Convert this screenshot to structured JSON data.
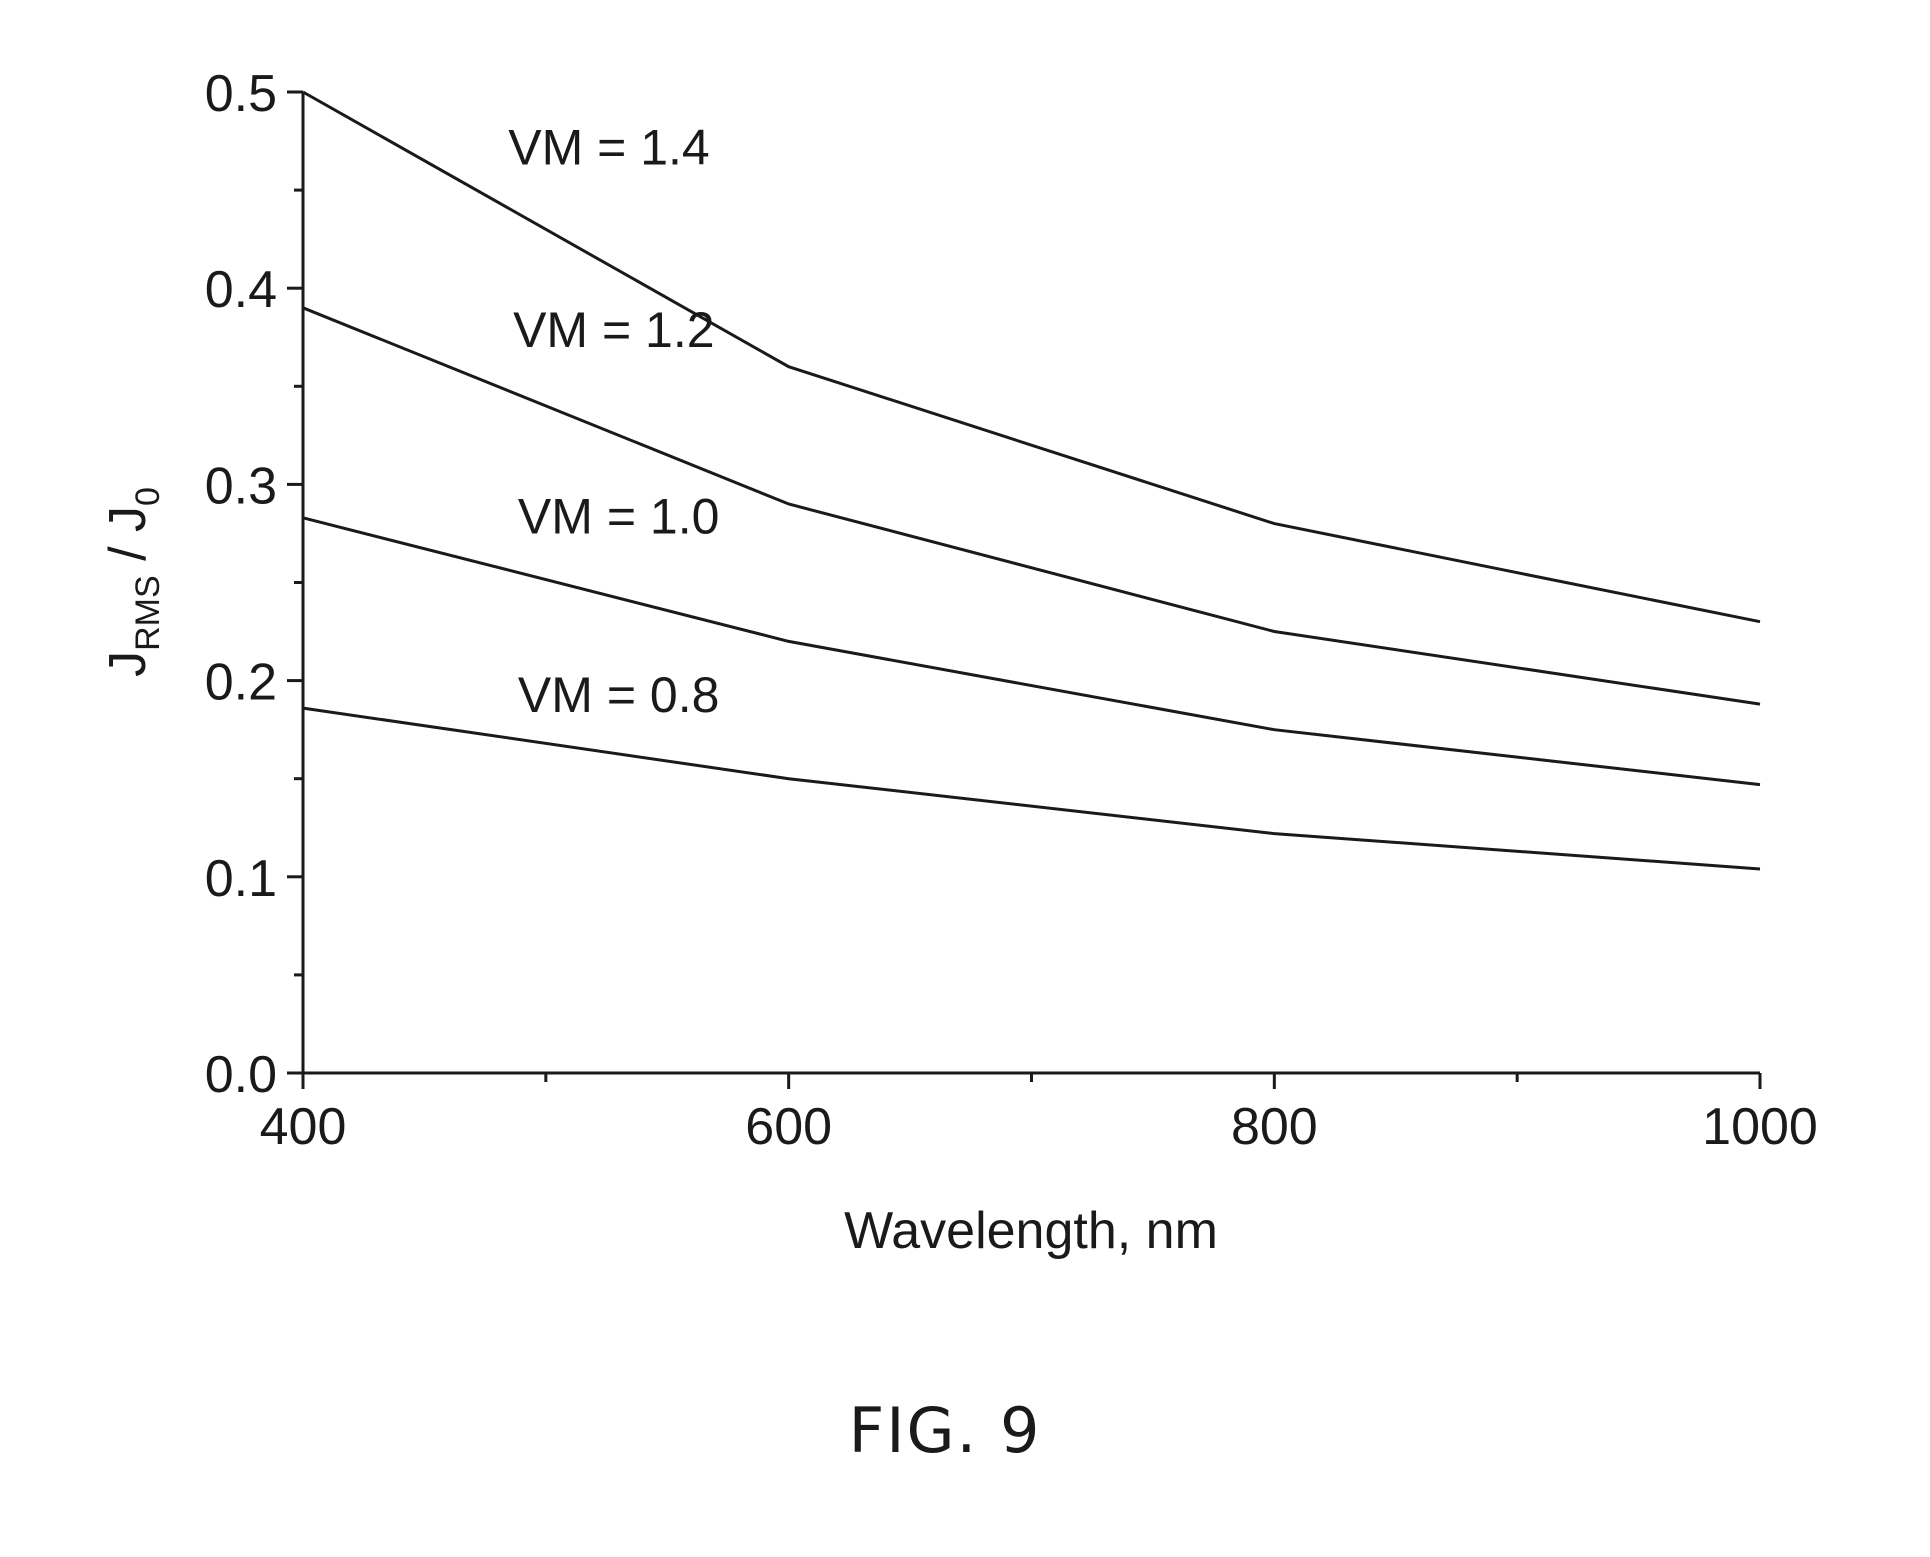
{
  "chart_data": {
    "type": "line",
    "title": "",
    "xlabel": "Wavelength, nm",
    "ylabel": {
      "main": "J",
      "sub": "RMS",
      "sep": " / ",
      "main2": "J",
      "sub2": "0"
    },
    "xlim": [
      400,
      1000
    ],
    "ylim": [
      0.0,
      0.5
    ],
    "x_ticks": [
      400,
      600,
      800,
      1000
    ],
    "x_tick_labels": [
      "400",
      "600",
      "800",
      "1000"
    ],
    "x_minor_ticks": [
      500,
      700,
      900
    ],
    "y_ticks": [
      0.0,
      0.1,
      0.2,
      0.3,
      0.4,
      0.5
    ],
    "y_tick_labels": [
      "0.0",
      "0.1",
      "0.2",
      "0.3",
      "0.4",
      "0.5"
    ],
    "y_minor_ticks": [
      0.05,
      0.15,
      0.25,
      0.35,
      0.45
    ],
    "grid": false,
    "legend": "none (inline labels)",
    "series": [
      {
        "name": "VM = 1.4",
        "x": [
          400,
          600,
          800,
          1000
        ],
        "values": [
          0.5,
          0.36,
          0.28,
          0.23
        ]
      },
      {
        "name": "VM = 1.2",
        "x": [
          400,
          600,
          800,
          1000
        ],
        "values": [
          0.39,
          0.29,
          0.225,
          0.188
        ]
      },
      {
        "name": "VM = 1.0",
        "x": [
          400,
          600,
          800,
          1000
        ],
        "values": [
          0.283,
          0.22,
          0.175,
          0.147
        ]
      },
      {
        "name": "VM = 0.8",
        "x": [
          400,
          600,
          800,
          1000
        ],
        "values": [
          0.186,
          0.15,
          0.122,
          0.104
        ]
      }
    ],
    "line_color": "#1a1a1a"
  },
  "caption": "FIG. 9"
}
